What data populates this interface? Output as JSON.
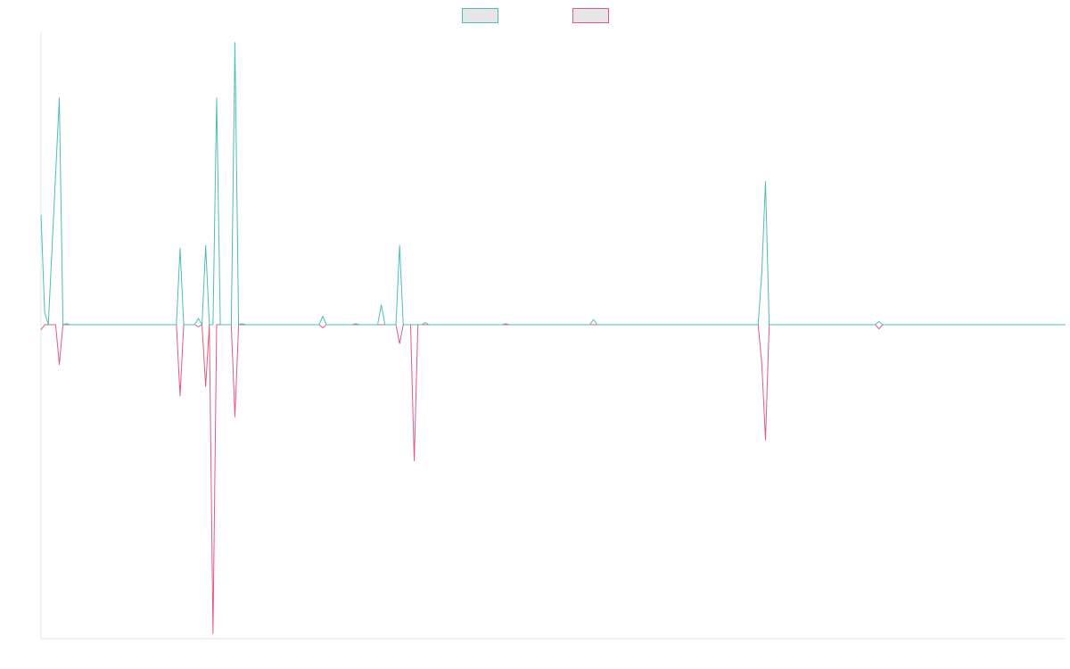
{
  "chart_data": {
    "type": "line",
    "title": "",
    "xlabel": "",
    "ylabel": "",
    "grid": false,
    "legend": "top-center",
    "xlim": [
      0,
      280
    ],
    "ylim": [
      -3,
      2.8
    ],
    "series": [
      {
        "name": "",
        "color": "#4bbfb6",
        "legend_fill": "#e6e6e6",
        "points": [
          [
            0,
            1.05
          ],
          [
            1,
            0.12
          ],
          [
            2,
            0
          ],
          [
            5,
            2.17
          ],
          [
            6,
            0
          ],
          [
            7,
            0.01
          ],
          [
            8,
            0
          ],
          [
            37,
            0
          ],
          [
            38,
            0.73
          ],
          [
            39,
            0
          ],
          [
            42,
            0
          ],
          [
            43,
            0.06
          ],
          [
            44,
            0
          ],
          [
            45,
            0.76
          ],
          [
            46,
            0
          ],
          [
            47,
            0
          ],
          [
            48,
            2.17
          ],
          [
            49,
            0
          ],
          [
            52,
            0
          ],
          [
            53,
            2.7
          ],
          [
            54,
            0
          ],
          [
            55,
            0.01
          ],
          [
            56,
            0
          ],
          [
            76,
            0
          ],
          [
            77,
            0.08
          ],
          [
            78,
            0
          ],
          [
            85,
            0
          ],
          [
            86,
            0.01
          ],
          [
            87,
            0
          ],
          [
            92,
            0
          ],
          [
            93,
            0.19
          ],
          [
            94,
            0
          ],
          [
            97,
            0
          ],
          [
            98,
            0.76
          ],
          [
            99,
            0
          ],
          [
            104,
            0
          ],
          [
            105,
            0.02
          ],
          [
            106,
            0
          ],
          [
            126,
            0
          ],
          [
            127,
            0.01
          ],
          [
            128,
            0
          ],
          [
            150,
            0
          ],
          [
            151,
            0.05
          ],
          [
            152,
            0
          ],
          [
            196,
            0
          ],
          [
            197,
            0.51
          ],
          [
            198,
            1.37
          ],
          [
            199,
            0
          ],
          [
            228,
            0
          ],
          [
            229,
            0.03
          ],
          [
            230,
            0
          ],
          [
            280,
            0
          ]
        ]
      },
      {
        "name": "",
        "color": "#e8587e",
        "legend_fill": "#e6e6e6",
        "points": [
          [
            0,
            -0.05
          ],
          [
            1,
            0
          ],
          [
            4,
            0
          ],
          [
            5,
            -0.38
          ],
          [
            6,
            0
          ],
          [
            37,
            0
          ],
          [
            38,
            -0.68
          ],
          [
            39,
            0
          ],
          [
            42,
            0
          ],
          [
            43,
            -0.02
          ],
          [
            44,
            0
          ],
          [
            45,
            -0.59
          ],
          [
            46,
            0
          ],
          [
            47,
            -2.95
          ],
          [
            48,
            0
          ],
          [
            52,
            0
          ],
          [
            53,
            -0.88
          ],
          [
            54,
            0
          ],
          [
            76,
            0
          ],
          [
            77,
            -0.03
          ],
          [
            78,
            0
          ],
          [
            97,
            0
          ],
          [
            98,
            -0.18
          ],
          [
            99,
            0
          ],
          [
            101,
            0
          ],
          [
            102,
            -1.3
          ],
          [
            103,
            0
          ],
          [
            196,
            0
          ],
          [
            197,
            -0.38
          ],
          [
            198,
            -1.1
          ],
          [
            199,
            0
          ],
          [
            228,
            0
          ],
          [
            229,
            -0.04
          ],
          [
            230,
            0
          ],
          [
            280,
            0
          ]
        ]
      }
    ]
  }
}
